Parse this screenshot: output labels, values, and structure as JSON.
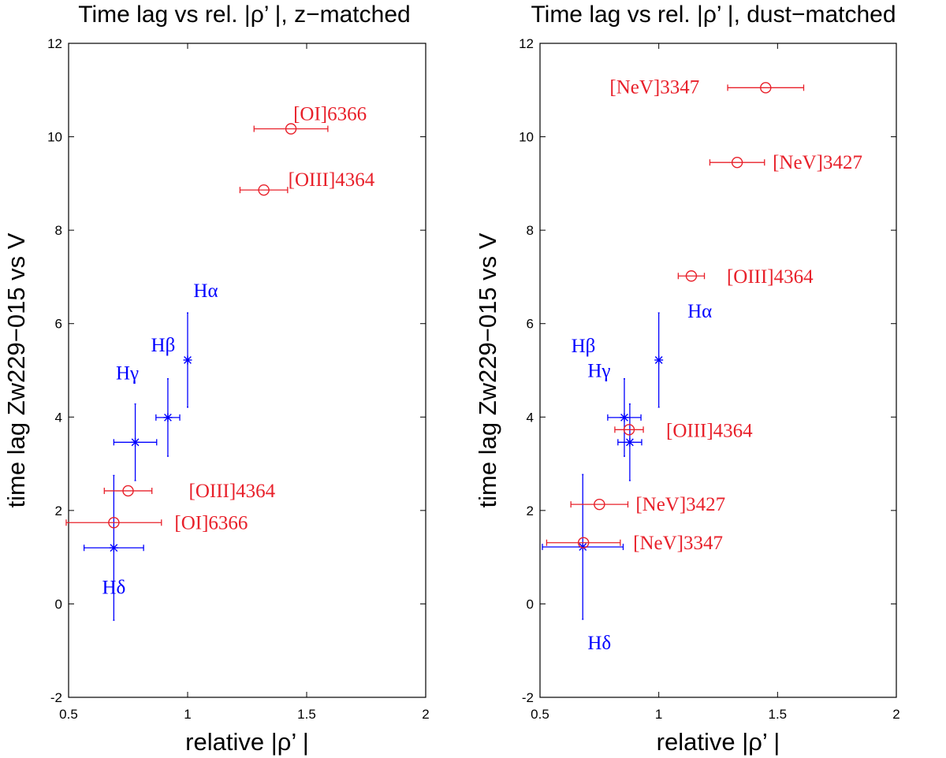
{
  "chart_data": [
    {
      "type": "scatter",
      "title": "Time lag vs rel. |ρ’ |, z−matched",
      "x_label": "relative |ρ’ |",
      "y_label": "time lag Zw229−015 vs V",
      "xlim": [
        0.5,
        2
      ],
      "xticks": [
        0.5,
        1,
        1.5,
        2
      ],
      "ylim": [
        -2,
        12
      ],
      "yticks": [
        -2,
        0,
        2,
        4,
        6,
        8,
        10,
        12
      ],
      "points": [
        {
          "label": "Hδ",
          "color": "#0000ff",
          "marker": "star",
          "x": 0.69,
          "y": 1.2,
          "xerr": 0.125,
          "yerr": 1.55
        },
        {
          "label": "Hγ",
          "color": "#0000ff",
          "marker": "star",
          "x": 0.78,
          "y": 3.46,
          "xerr": 0.09,
          "yerr": 0.82
        },
        {
          "label": "Hβ",
          "color": "#0000ff",
          "marker": "star",
          "x": 0.917,
          "y": 3.99,
          "xerr": 0.05,
          "yerr": 0.83
        },
        {
          "label": "Hα",
          "color": "#0000ff",
          "marker": "star",
          "x": 1.0,
          "y": 5.22,
          "xerr": 0,
          "yerr": 1.01
        },
        {
          "label": "[OI]6366",
          "color": "#e8202a",
          "marker": "circle",
          "x": 0.69,
          "y": 1.74,
          "xerr": 0.2,
          "yerr": 0
        },
        {
          "label": "[OIII]4364",
          "color": "#e8202a",
          "marker": "circle",
          "x": 0.75,
          "y": 2.42,
          "xerr": 0.1,
          "yerr": 0
        },
        {
          "label": "[OIII]4364",
          "color": "#e8202a",
          "marker": "circle",
          "x": 1.32,
          "y": 8.86,
          "xerr": 0.1,
          "yerr": 0
        },
        {
          "label": "[OI]6366",
          "color": "#e8202a",
          "marker": "circle",
          "x": 1.434,
          "y": 10.17,
          "xerr": 0.155,
          "yerr": 0
        }
      ]
    },
    {
      "type": "scatter",
      "title": "Time lag vs rel. |ρ’ |, dust−matched",
      "x_label": "relative |ρ’ |",
      "y_label": "time lag Zw229−015 vs V",
      "xlim": [
        0.5,
        2
      ],
      "xticks": [
        0.5,
        1,
        1.5,
        2
      ],
      "ylim": [
        -2,
        12
      ],
      "yticks": [
        -2,
        0,
        2,
        4,
        6,
        8,
        10,
        12
      ],
      "points": [
        {
          "label": "Hδ",
          "color": "#0000ff",
          "marker": "star",
          "x": 0.68,
          "y": 1.22,
          "xerr": 0.17,
          "yerr": 1.55
        },
        {
          "label": "Hγ",
          "color": "#0000ff",
          "marker": "star",
          "x": 0.878,
          "y": 3.46,
          "xerr": 0.05,
          "yerr": 0.82
        },
        {
          "label": "Hβ",
          "color": "#0000ff",
          "marker": "star",
          "x": 0.855,
          "y": 3.99,
          "xerr": 0.07,
          "yerr": 0.83
        },
        {
          "label": "Hα",
          "color": "#0000ff",
          "marker": "star",
          "x": 1.0,
          "y": 5.22,
          "xerr": 0,
          "yerr": 1.01
        },
        {
          "label": "[NeV]3347",
          "color": "#e8202a",
          "marker": "circle",
          "x": 0.683,
          "y": 1.31,
          "xerr": 0.155,
          "yerr": 0
        },
        {
          "label": "[NeV]3427",
          "color": "#e8202a",
          "marker": "circle",
          "x": 0.75,
          "y": 2.13,
          "xerr": 0.12,
          "yerr": 0
        },
        {
          "label": "[OIII]4364",
          "color": "#e8202a",
          "marker": "circle",
          "x": 0.875,
          "y": 3.73,
          "xerr": 0.06,
          "yerr": 0
        },
        {
          "label": "[OIII]4364",
          "color": "#e8202a",
          "marker": "circle",
          "x": 1.137,
          "y": 7.02,
          "xerr": 0.055,
          "yerr": 0
        },
        {
          "label": "[NeV]3427",
          "color": "#e8202a",
          "marker": "circle",
          "x": 1.33,
          "y": 9.45,
          "xerr": 0.115,
          "yerr": 0
        },
        {
          "label": "[NeV]3347",
          "color": "#e8202a",
          "marker": "circle",
          "x": 1.45,
          "y": 11.05,
          "xerr": 0.16,
          "yerr": 0
        }
      ]
    }
  ]
}
